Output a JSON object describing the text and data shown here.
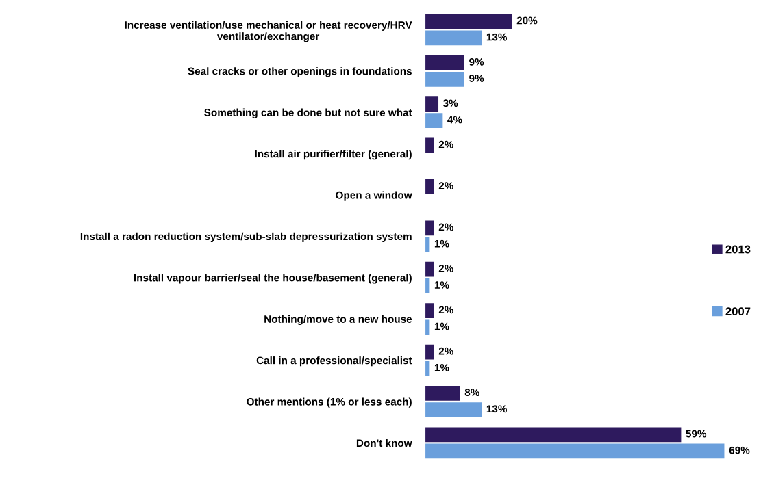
{
  "chart_data": {
    "type": "bar",
    "orientation": "horizontal",
    "legend": "right",
    "categories": [
      "Increase ventilation/use mechanical or heat recovery/HRV\nventilator/exchanger",
      "Seal cracks or other openings in foundations",
      "Something can be done but not sure what",
      "Install air purifier/filter (general)",
      "Open a window",
      "Install a radon reduction system/sub-slab depressurization system",
      "Install vapour barrier/seal the house/basement (general)",
      "Nothing/move to a new house",
      "Call in a professional/specialist",
      "Other mentions (1% or less each)",
      "Don't know"
    ],
    "series": [
      {
        "name": "2013",
        "color": "#2e1a5e",
        "values": [
          20,
          9,
          3,
          2,
          2,
          2,
          2,
          2,
          2,
          8,
          59
        ],
        "value_labels": [
          "20%",
          "9%",
          "3%",
          "2%",
          "2%",
          "2%",
          "2%",
          "2%",
          "2%",
          "8%",
          "59%"
        ]
      },
      {
        "name": "2007",
        "color": "#6a9fdc",
        "values": [
          13,
          9,
          4,
          null,
          null,
          1,
          1,
          1,
          1,
          13,
          69
        ],
        "value_labels": [
          "13%",
          "9%",
          "4%",
          null,
          null,
          "1%",
          "1%",
          "1%",
          "1%",
          "13%",
          "69%"
        ]
      }
    ]
  }
}
